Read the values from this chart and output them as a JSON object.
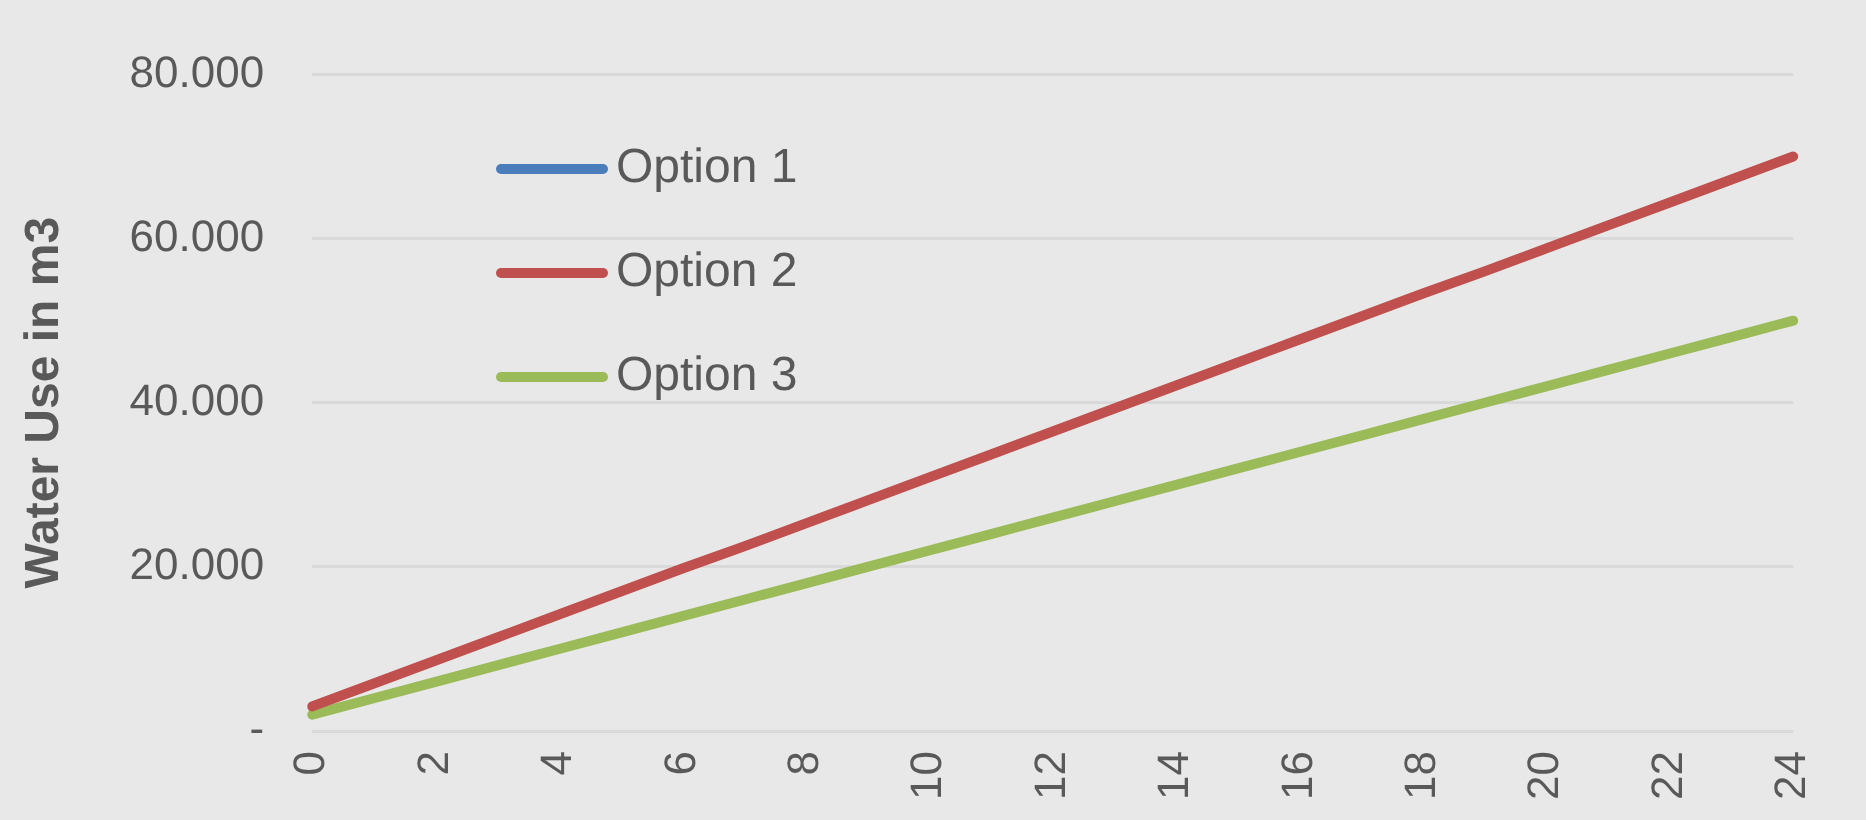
{
  "chart_data": {
    "type": "line",
    "ylabel": "Water Use in m3",
    "categories": [
      "0",
      null,
      "2",
      null,
      "4",
      null,
      "6",
      null,
      "8",
      null,
      "10",
      null,
      "12",
      null,
      "14",
      null,
      "16",
      null,
      "18",
      null,
      "20",
      null,
      "22",
      null,
      "24"
    ],
    "series": [
      {
        "name": "Option 1",
        "color": "#4a7ebb",
        "values": [
          null,
          null,
          null,
          null,
          null,
          null,
          null,
          null,
          null,
          null,
          null,
          null,
          null,
          null,
          null,
          null,
          null,
          null,
          null,
          null,
          null,
          null,
          null,
          null,
          null
        ]
      },
      {
        "name": "Option 2",
        "color": "#c0504d",
        "values": [
          3000,
          5800,
          8600,
          11400,
          14200,
          17000,
          19800,
          22500,
          25300,
          28100,
          30900,
          33700,
          36500,
          39300,
          42100,
          44900,
          47700,
          50500,
          53300,
          56000,
          58800,
          61600,
          64400,
          67200,
          70000
        ]
      },
      {
        "name": "Option 3",
        "color": "#9bbb59",
        "values": [
          2000,
          4000,
          6000,
          8000,
          10000,
          12000,
          14000,
          16000,
          18000,
          20000,
          22000,
          24000,
          26000,
          28000,
          30000,
          32000,
          34000,
          36000,
          38000,
          40000,
          42000,
          44000,
          46000,
          48000,
          50000
        ]
      }
    ],
    "ylim": [
      0,
      80000
    ],
    "yticks": [
      {
        "value": 0,
        "label": "-"
      },
      {
        "value": 20000,
        "label": "20.000"
      },
      {
        "value": 40000,
        "label": "40.000"
      },
      {
        "value": 60000,
        "label": "60.000"
      },
      {
        "value": 80000,
        "label": "80.000"
      }
    ],
    "grid": "y",
    "legend": "top left",
    "marker": "none",
    "line_style": "solid"
  }
}
